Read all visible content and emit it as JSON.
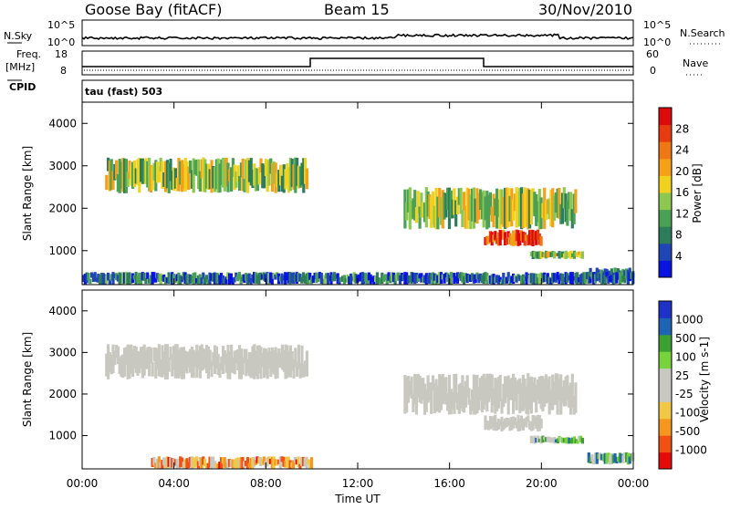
{
  "header": {
    "station": "Goose Bay (fitACF)",
    "beam": "Beam 15",
    "date": "30/Nov/2010"
  },
  "top_panels": {
    "nsky_label": "N.Sky",
    "nsky_top": "10^5",
    "nsky_bottom": "10^0",
    "nsearch_label": "N.Search",
    "nsearch_top": "10^5",
    "nsearch_bottom": "10^0",
    "freq_label": "Freq.",
    "freq_unit": "[MHz]",
    "freq_top": "18",
    "freq_bottom": "8",
    "nave_label": "Nave",
    "nave_top": "60",
    "nave_bottom": "0",
    "cpid_label": "CPID",
    "cpid_value": "tau (fast) 503"
  },
  "colors": {
    "power_scale": [
      "#0a14e0",
      "#1e46b4",
      "#2d7d5a",
      "#4aa055",
      "#8cc850",
      "#f0d21e",
      "#f5a019",
      "#f07814",
      "#e63c0f",
      "#dc0a0a"
    ],
    "velocity_scale": [
      "#e60a0a",
      "#f05014",
      "#f5961e",
      "#f0c846",
      "#c8c8c0",
      "#c8c8c0",
      "#78d23c",
      "#3ca032",
      "#1e64b4",
      "#1e32c8"
    ],
    "ground_scatter": "#c8c8c0"
  },
  "chart_data": [
    {
      "type": "heatmap",
      "name": "power",
      "ylabel": "Slant Range [km]",
      "colorbar_label": "Power [dB]",
      "colorbar_ticks": [
        "4",
        "8",
        "12",
        "16",
        "20",
        "24",
        "28"
      ],
      "yticks": [
        "1000",
        "2000",
        "3000",
        "4000"
      ],
      "ylim": [
        200,
        4500
      ],
      "regions": [
        {
          "t0": 1.0,
          "t1": 9.8,
          "r0": 2350,
          "r1": 3200,
          "level": 0.45
        },
        {
          "t0": 14.0,
          "t1": 21.5,
          "r0": 1500,
          "r1": 2500,
          "level": 0.45
        },
        {
          "t0": 17.5,
          "t1": 20.0,
          "r0": 1100,
          "r1": 1500,
          "level": 0.85
        },
        {
          "t0": 19.5,
          "t1": 21.8,
          "r0": 800,
          "r1": 1000,
          "level": 0.45
        },
        {
          "t0": 22.0,
          "t1": 24.0,
          "r0": 300,
          "r1": 600,
          "level": 0.25
        },
        {
          "t0": 0.0,
          "t1": 24.0,
          "r0": 200,
          "r1": 500,
          "level": 0.2
        }
      ]
    },
    {
      "type": "heatmap",
      "name": "velocity",
      "ylabel": "Slant Range [km]",
      "colorbar_label": "Velocity [m s-1]",
      "colorbar_ticks": [
        "-1000",
        "-500",
        "-100",
        "-25",
        "25",
        "100",
        "500",
        "1000"
      ],
      "yticks": [
        "1000",
        "2000",
        "3000",
        "4000"
      ],
      "xticks": [
        "00:00",
        "04:00",
        "08:00",
        "12:00",
        "16:00",
        "20:00",
        "00:00"
      ],
      "xlabel": "Time UT",
      "ylim": [
        200,
        4500
      ],
      "regions": [
        {
          "t0": 1.0,
          "t1": 9.8,
          "r0": 2350,
          "r1": 3200,
          "level": "gs"
        },
        {
          "t0": 14.0,
          "t1": 21.5,
          "r0": 1500,
          "r1": 2500,
          "level": "gs"
        },
        {
          "t0": 17.5,
          "t1": 20.0,
          "r0": 1100,
          "r1": 1500,
          "level": "gs"
        },
        {
          "t0": 19.5,
          "t1": 21.8,
          "r0": 800,
          "r1": 1000,
          "level": 0.65
        },
        {
          "t0": 22.0,
          "t1": 24.0,
          "r0": 300,
          "r1": 600,
          "level": 0.7
        },
        {
          "t0": 3.0,
          "t1": 10.0,
          "r0": 200,
          "r1": 500,
          "level": 0.3
        }
      ]
    }
  ]
}
